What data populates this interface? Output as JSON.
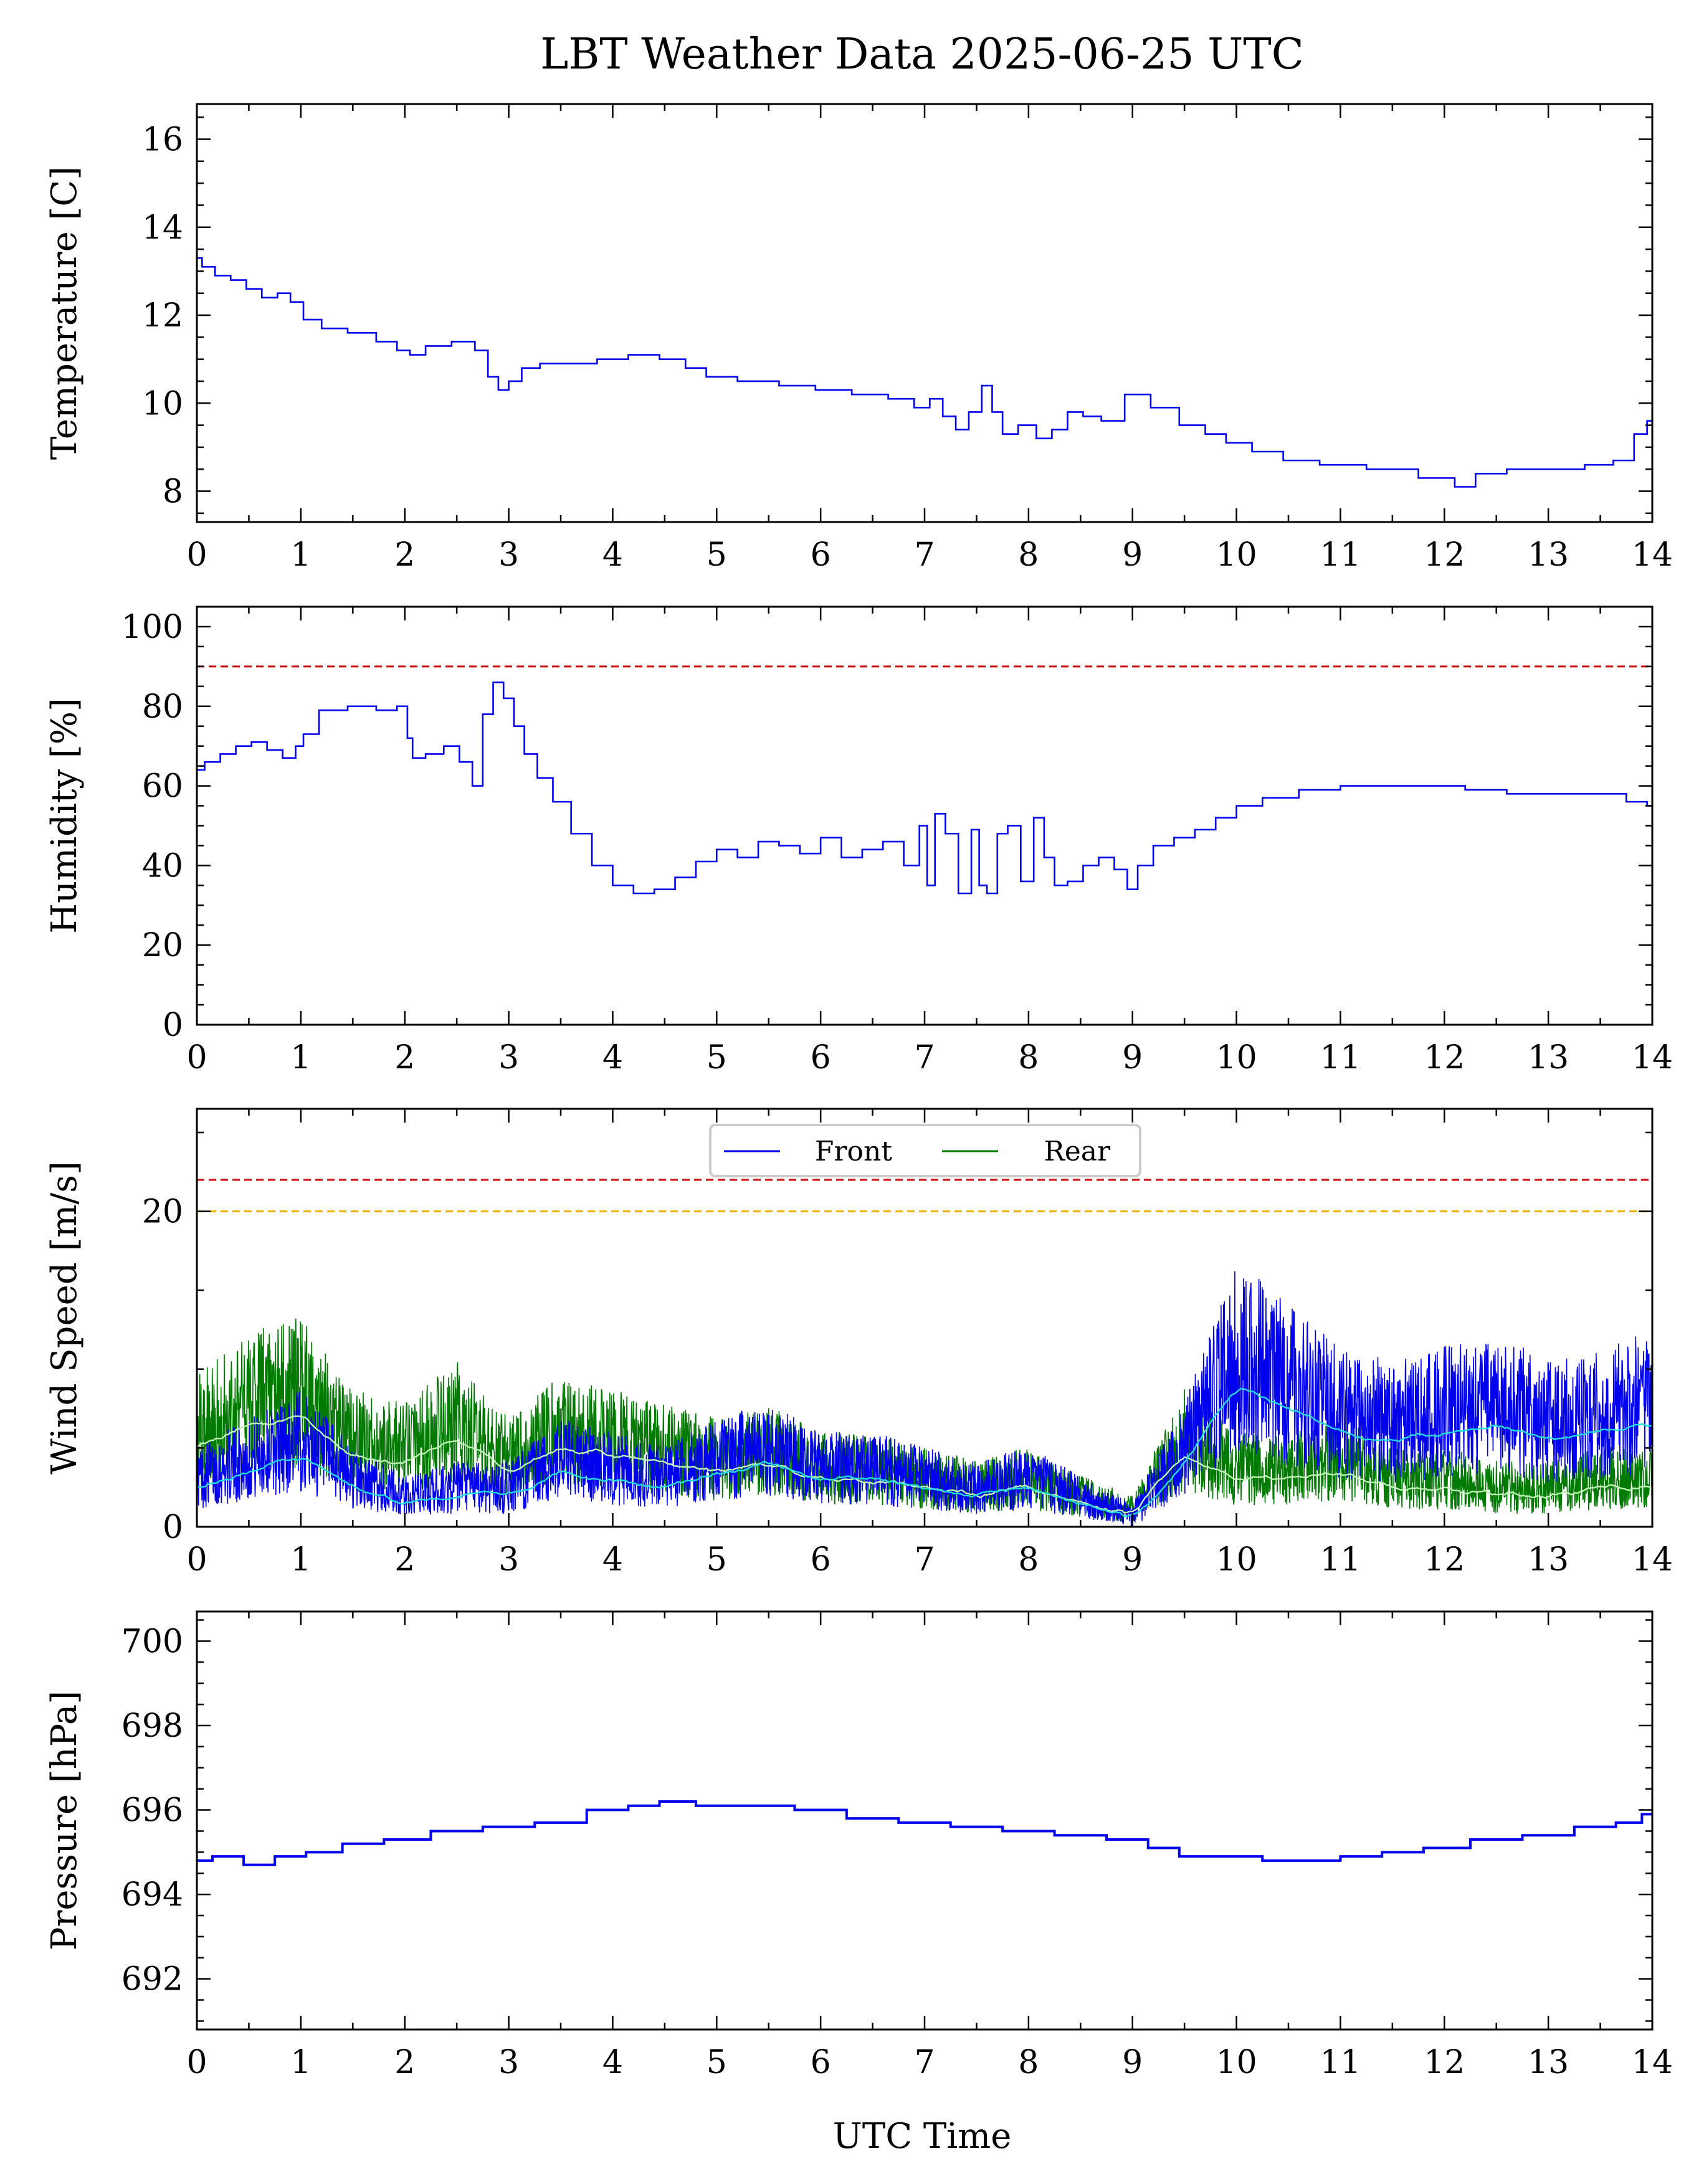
{
  "figure": {
    "title": "LBT Weather Data 2025-06-25 UTC",
    "xlabel": "UTC Time"
  },
  "colors": {
    "front": "#0000ee",
    "rear": "#007a00",
    "front_avg": "#22dddd",
    "rear_avg": "#bff5b5",
    "limit_red": "#cc1111",
    "limit_orange": "#eeb300"
  },
  "chart_data": [
    {
      "type": "line",
      "ylabel": "Temperature [C]",
      "xlim": [
        0,
        14
      ],
      "ylim": [
        7.3,
        16.8
      ],
      "xticks": [
        0,
        1,
        2,
        3,
        4,
        5,
        6,
        7,
        8,
        9,
        10,
        11,
        12,
        13,
        14
      ],
      "yticks": [
        8,
        10,
        12,
        14,
        16
      ],
      "series": [
        {
          "x": [
            0,
            0.1,
            0.25,
            0.4,
            0.55,
            0.7,
            0.85,
            0.95,
            1.1,
            1.3,
            1.6,
            1.85,
            2.0,
            2.1,
            2.3,
            2.6,
            2.75,
            2.85,
            2.95,
            3.05,
            3.2,
            3.4,
            3.7,
            4.0,
            4.3,
            4.6,
            4.8,
            5.0,
            5.4,
            5.8,
            6.1,
            6.5,
            6.8,
            7.0,
            7.1,
            7.25,
            7.35,
            7.5,
            7.6,
            7.7,
            7.8,
            8.0,
            8.15,
            8.3,
            8.45,
            8.6,
            8.8,
            9.05,
            9.3,
            9.6,
            9.8,
            10.0,
            10.3,
            10.6,
            11.0,
            11.5,
            12.0,
            12.2,
            12.4,
            12.8,
            13.2,
            13.5,
            13.75,
            13.9,
            14.0
          ],
          "y": [
            13.3,
            13.1,
            12.9,
            12.8,
            12.6,
            12.4,
            12.5,
            12.3,
            11.9,
            11.7,
            11.6,
            11.4,
            11.2,
            11.1,
            11.3,
            11.4,
            11.2,
            10.6,
            10.3,
            10.5,
            10.8,
            10.9,
            10.9,
            11.0,
            11.1,
            11.0,
            10.8,
            10.6,
            10.5,
            10.4,
            10.3,
            10.2,
            10.1,
            9.9,
            10.1,
            9.7,
            9.4,
            9.8,
            10.4,
            9.8,
            9.3,
            9.5,
            9.2,
            9.4,
            9.8,
            9.7,
            9.6,
            10.2,
            9.9,
            9.5,
            9.3,
            9.1,
            8.9,
            8.7,
            8.6,
            8.5,
            8.3,
            8.1,
            8.4,
            8.5,
            8.5,
            8.6,
            8.7,
            9.3,
            9.6
          ]
        }
      ]
    },
    {
      "type": "line",
      "ylabel": "Humidity [%]",
      "xlim": [
        0,
        14
      ],
      "ylim": [
        0,
        105
      ],
      "xticks": [
        0,
        1,
        2,
        3,
        4,
        5,
        6,
        7,
        8,
        9,
        10,
        11,
        12,
        13,
        14
      ],
      "yticks": [
        0,
        20,
        40,
        60,
        80,
        100
      ],
      "hlines": [
        {
          "y": 90,
          "color": "#cc1111"
        }
      ],
      "series": [
        {
          "x": [
            0,
            0.15,
            0.3,
            0.45,
            0.6,
            0.75,
            0.9,
            1.0,
            1.05,
            1.3,
            1.6,
            1.85,
            2.0,
            2.05,
            2.1,
            2.3,
            2.45,
            2.6,
            2.7,
            2.8,
            2.9,
            3.0,
            3.1,
            3.2,
            3.35,
            3.5,
            3.7,
            3.9,
            4.1,
            4.3,
            4.5,
            4.7,
            4.9,
            5.1,
            5.3,
            5.5,
            5.7,
            5.9,
            6.1,
            6.3,
            6.5,
            6.7,
            6.9,
            7.0,
            7.05,
            7.15,
            7.25,
            7.4,
            7.5,
            7.55,
            7.65,
            7.75,
            7.85,
            8.0,
            8.1,
            8.2,
            8.3,
            8.45,
            8.6,
            8.75,
            8.9,
            9.0,
            9.1,
            9.3,
            9.5,
            9.7,
            9.9,
            10.1,
            10.4,
            10.8,
            11.2,
            11.6,
            12.0,
            12.4,
            12.8,
            13.2,
            13.6,
            13.9,
            14.0
          ],
          "y": [
            64,
            66,
            68,
            70,
            71,
            69,
            67,
            70,
            73,
            79,
            80,
            79,
            80,
            72,
            67,
            68,
            70,
            66,
            60,
            78,
            86,
            82,
            75,
            68,
            62,
            56,
            48,
            40,
            35,
            33,
            34,
            37,
            41,
            44,
            42,
            46,
            45,
            43,
            47,
            42,
            44,
            46,
            40,
            50,
            35,
            53,
            48,
            33,
            49,
            35,
            33,
            48,
            50,
            36,
            52,
            42,
            35,
            36,
            40,
            42,
            39,
            34,
            40,
            45,
            47,
            49,
            52,
            55,
            57,
            59,
            60,
            60,
            60,
            59,
            58,
            58,
            58,
            56,
            55
          ]
        }
      ]
    },
    {
      "type": "line",
      "ylabel": "Wind Speed [m/s]",
      "xlim": [
        0,
        14
      ],
      "ylim": [
        0,
        26.5
      ],
      "xticks": [
        0,
        1,
        2,
        3,
        4,
        5,
        6,
        7,
        8,
        9,
        10,
        11,
        12,
        13,
        14
      ],
      "yticks": [
        0,
        20
      ],
      "legend": {
        "placement": "top-center",
        "entries": [
          "Front",
          "Rear"
        ]
      },
      "hlines": [
        {
          "y": 22,
          "color": "#cc1111"
        },
        {
          "y": 20,
          "color": "#eeb300"
        }
      ],
      "series": [
        {
          "name": "Front",
          "x": [
            0,
            0.5,
            1.0,
            1.5,
            2.0,
            2.5,
            3.0,
            3.5,
            4.0,
            4.5,
            5.0,
            5.5,
            6.0,
            6.5,
            7.0,
            7.5,
            8.0,
            8.5,
            9.0,
            9.5,
            10.0,
            10.5,
            11.0,
            11.5,
            12.0,
            12.5,
            13.0,
            13.5,
            14.0
          ],
          "y": [
            2.5,
            3.5,
            4.5,
            2.5,
            1.5,
            2.0,
            2.0,
            3.5,
            3.0,
            2.5,
            3.5,
            4.0,
            3.0,
            3.0,
            2.5,
            2.0,
            2.5,
            1.5,
            0.5,
            4.0,
            9.0,
            7.5,
            6.0,
            5.5,
            6.0,
            6.5,
            5.5,
            6.0,
            6.5
          ]
        },
        {
          "name": "Rear",
          "x": [
            0,
            0.5,
            1.0,
            1.5,
            2.0,
            2.5,
            3.0,
            3.5,
            4.0,
            4.5,
            5.0,
            5.5,
            6.0,
            6.5,
            7.0,
            7.5,
            8.0,
            8.5,
            9.0,
            9.5,
            10.0,
            10.5,
            11.0,
            11.5,
            12.0,
            12.5,
            13.0,
            13.5,
            14.0
          ],
          "y": [
            5.0,
            6.5,
            7.0,
            4.5,
            4.0,
            5.5,
            3.5,
            5.0,
            4.5,
            4.0,
            3.5,
            4.0,
            3.0,
            3.0,
            2.5,
            2.0,
            2.5,
            1.5,
            0.8,
            4.5,
            3.0,
            3.0,
            3.5,
            2.5,
            2.5,
            2.0,
            2.0,
            2.5,
            2.5
          ]
        }
      ]
    },
    {
      "type": "line",
      "ylabel": "Pressure [hPa]",
      "xlim": [
        0,
        14
      ],
      "ylim": [
        690.8,
        700.7
      ],
      "xticks": [
        0,
        1,
        2,
        3,
        4,
        5,
        6,
        7,
        8,
        9,
        10,
        11,
        12,
        13,
        14
      ],
      "yticks": [
        692,
        694,
        696,
        698,
        700
      ],
      "series": [
        {
          "x": [
            0,
            0.3,
            0.6,
            0.9,
            1.2,
            1.6,
            2.0,
            2.5,
            3.0,
            3.5,
            4.0,
            4.3,
            4.6,
            5.0,
            5.5,
            6.0,
            6.5,
            7.0,
            7.5,
            8.0,
            8.5,
            9.0,
            9.3,
            9.6,
            10.0,
            10.5,
            10.8,
            11.2,
            11.6,
            12.0,
            12.5,
            13.0,
            13.5,
            13.8,
            14.0
          ],
          "y": [
            694.8,
            694.9,
            694.7,
            694.9,
            695.0,
            695.2,
            695.3,
            695.5,
            695.6,
            695.7,
            696.0,
            696.1,
            696.2,
            696.1,
            696.1,
            696.0,
            695.8,
            695.7,
            695.6,
            695.5,
            695.4,
            695.3,
            695.1,
            694.9,
            694.9,
            694.8,
            694.8,
            694.9,
            695.0,
            695.1,
            695.3,
            695.4,
            695.6,
            695.7,
            695.9
          ]
        }
      ]
    }
  ]
}
